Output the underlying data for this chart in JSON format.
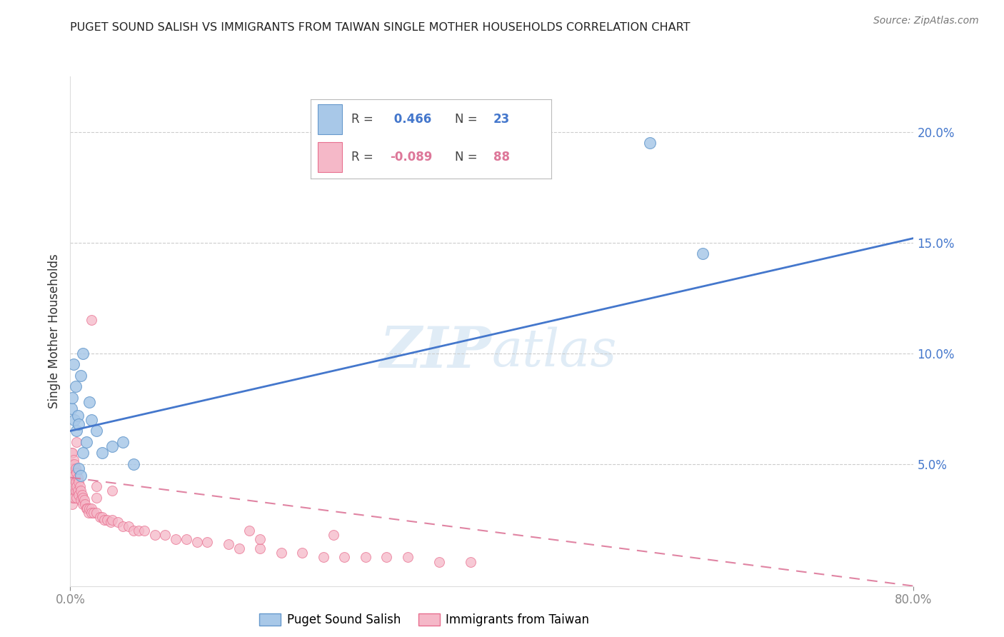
{
  "title": "PUGET SOUND SALISH VS IMMIGRANTS FROM TAIWAN SINGLE MOTHER HOUSEHOLDS CORRELATION CHART",
  "source": "Source: ZipAtlas.com",
  "ylabel": "Single Mother Households",
  "xlim": [
    0,
    0.8
  ],
  "ylim": [
    -0.005,
    0.225
  ],
  "right_yticks": [
    0.05,
    0.1,
    0.15,
    0.2
  ],
  "right_yticklabels": [
    "5.0%",
    "10.0%",
    "15.0%",
    "20.0%"
  ],
  "xticks": [
    0.0,
    0.8
  ],
  "xticklabels": [
    "0.0%",
    "80.0%"
  ],
  "series1_label": "Puget Sound Salish",
  "series1_color": "#a8c8e8",
  "series1_edge_color": "#6699cc",
  "series1_R": 0.466,
  "series1_N": 23,
  "series2_label": "Immigrants from Taiwan",
  "series2_color": "#f5b8c8",
  "series2_edge_color": "#e87090",
  "series2_R": -0.089,
  "series2_N": 88,
  "trend1_color": "#4477cc",
  "trend2_color": "#dd7799",
  "watermark_zip": "ZIP",
  "watermark_atlas": "atlas",
  "background_color": "#ffffff",
  "series1_x": [
    0.001,
    0.002,
    0.003,
    0.004,
    0.005,
    0.006,
    0.007,
    0.008,
    0.01,
    0.012,
    0.015,
    0.018,
    0.02,
    0.025,
    0.03,
    0.04,
    0.05,
    0.06,
    0.008,
    0.012,
    0.55,
    0.6,
    0.01
  ],
  "series1_y": [
    0.075,
    0.08,
    0.095,
    0.07,
    0.085,
    0.065,
    0.072,
    0.068,
    0.09,
    0.1,
    0.06,
    0.078,
    0.07,
    0.065,
    0.055,
    0.058,
    0.06,
    0.05,
    0.048,
    0.055,
    0.195,
    0.145,
    0.045
  ],
  "series2_x": [
    0.001,
    0.001,
    0.001,
    0.001,
    0.001,
    0.001,
    0.001,
    0.001,
    0.002,
    0.002,
    0.002,
    0.002,
    0.002,
    0.002,
    0.002,
    0.003,
    0.003,
    0.003,
    0.003,
    0.003,
    0.004,
    0.004,
    0.004,
    0.004,
    0.005,
    0.005,
    0.005,
    0.006,
    0.006,
    0.006,
    0.007,
    0.007,
    0.008,
    0.008,
    0.009,
    0.01,
    0.01,
    0.011,
    0.012,
    0.012,
    0.013,
    0.014,
    0.015,
    0.016,
    0.017,
    0.018,
    0.02,
    0.02,
    0.022,
    0.025,
    0.025,
    0.028,
    0.03,
    0.032,
    0.035,
    0.038,
    0.04,
    0.045,
    0.05,
    0.055,
    0.06,
    0.065,
    0.07,
    0.08,
    0.09,
    0.1,
    0.11,
    0.12,
    0.13,
    0.15,
    0.16,
    0.18,
    0.2,
    0.22,
    0.24,
    0.26,
    0.28,
    0.3,
    0.32,
    0.35,
    0.38,
    0.02,
    0.025,
    0.17,
    0.25,
    0.18,
    0.04,
    0.006
  ],
  "series2_y": [
    0.055,
    0.05,
    0.048,
    0.045,
    0.042,
    0.04,
    0.038,
    0.035,
    0.055,
    0.05,
    0.045,
    0.04,
    0.038,
    0.035,
    0.032,
    0.052,
    0.048,
    0.042,
    0.038,
    0.035,
    0.05,
    0.045,
    0.04,
    0.035,
    0.048,
    0.042,
    0.038,
    0.046,
    0.04,
    0.035,
    0.044,
    0.038,
    0.042,
    0.036,
    0.04,
    0.038,
    0.034,
    0.036,
    0.035,
    0.032,
    0.034,
    0.032,
    0.03,
    0.03,
    0.028,
    0.03,
    0.03,
    0.028,
    0.028,
    0.028,
    0.035,
    0.026,
    0.026,
    0.025,
    0.025,
    0.024,
    0.025,
    0.024,
    0.022,
    0.022,
    0.02,
    0.02,
    0.02,
    0.018,
    0.018,
    0.016,
    0.016,
    0.015,
    0.015,
    0.014,
    0.012,
    0.012,
    0.01,
    0.01,
    0.008,
    0.008,
    0.008,
    0.008,
    0.008,
    0.006,
    0.006,
    0.115,
    0.04,
    0.02,
    0.018,
    0.016,
    0.038,
    0.06
  ],
  "trend1_x0": 0.0,
  "trend1_x1": 0.8,
  "trend1_y0": 0.065,
  "trend1_y1": 0.152,
  "trend2_x0": 0.0,
  "trend2_x1": 0.8,
  "trend2_y0": 0.044,
  "trend2_y1": -0.005
}
